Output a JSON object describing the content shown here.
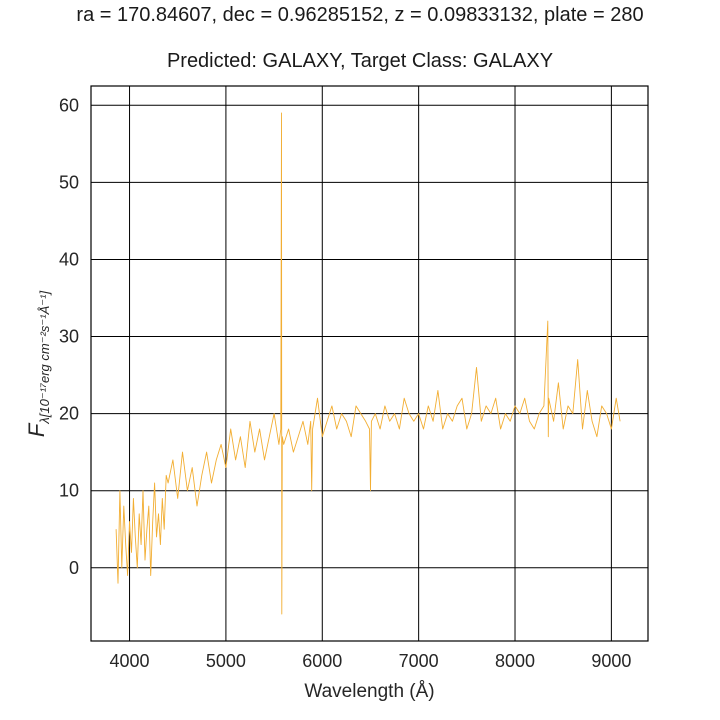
{
  "chart_data": {
    "type": "line",
    "suptitle": "ra = 170.84607, dec = 0.96285152, z = 0.09833132, plate = 280",
    "title": "Predicted: GALAXY, Target Class: GALAXY",
    "xlabel": "Wavelength (Å)",
    "ylabel_main": "F",
    "ylabel_sub": "λ[10⁻¹⁷erg cm⁻²s⁻¹Å⁻¹]",
    "xlim": [
      3600,
      9380
    ],
    "ylim": [
      -9.5,
      62.5
    ],
    "xticks": [
      4000,
      5000,
      6000,
      7000,
      8000,
      9000
    ],
    "yticks": [
      0,
      10,
      20,
      30,
      40,
      50,
      60
    ],
    "grid": true,
    "line_color": "#f2ae33",
    "series": [
      {
        "x": [
          3860,
          3880,
          3900,
          3920,
          3940,
          3960,
          3980,
          4000,
          4020,
          4040,
          4060,
          4080,
          4100,
          4120,
          4140,
          4160,
          4180,
          4200,
          4220,
          4240,
          4260,
          4280,
          4300,
          4320,
          4340,
          4360,
          4380,
          4400,
          4450,
          4500,
          4550,
          4600,
          4650,
          4700,
          4750,
          4800,
          4850,
          4900,
          4950,
          5000,
          5050,
          5100,
          5150,
          5200,
          5250,
          5300,
          5350,
          5400,
          5450,
          5500,
          5550,
          5570,
          5577,
          5580,
          5585,
          5600,
          5650,
          5700,
          5750,
          5800,
          5850,
          5880,
          5890,
          5900,
          5950,
          6000,
          6050,
          6100,
          6150,
          6200,
          6250,
          6300,
          6350,
          6400,
          6450,
          6490,
          6500,
          6510,
          6550,
          6600,
          6650,
          6700,
          6750,
          6800,
          6850,
          6900,
          6950,
          7000,
          7050,
          7100,
          7150,
          7200,
          7250,
          7300,
          7350,
          7400,
          7450,
          7500,
          7550,
          7600,
          7650,
          7700,
          7750,
          7800,
          7850,
          7900,
          7950,
          8000,
          8050,
          8100,
          8150,
          8200,
          8250,
          8300,
          8340,
          8345,
          8350,
          8400,
          8450,
          8500,
          8550,
          8600,
          8650,
          8700,
          8750,
          8800,
          8850,
          8900,
          8950,
          9000,
          9050,
          9090
        ],
        "y": [
          5,
          -2,
          10,
          0,
          8,
          3,
          -1,
          6,
          2,
          9,
          4,
          0,
          7,
          3,
          10,
          1,
          5,
          8,
          -1,
          6,
          11,
          4,
          7,
          3,
          9,
          5,
          12,
          11,
          14,
          9,
          15,
          10,
          13,
          8,
          12,
          15,
          11,
          14,
          16,
          13,
          18,
          14,
          17,
          13,
          19,
          15,
          18,
          14,
          17,
          20,
          16,
          18,
          59,
          -6,
          17,
          16,
          18,
          15,
          17,
          19,
          16,
          19,
          10,
          18,
          22,
          17,
          19,
          21,
          18,
          20,
          19,
          17,
          21,
          20,
          19,
          18,
          10,
          19,
          20,
          18,
          21,
          19,
          20,
          18,
          22,
          20,
          19,
          20,
          18,
          21,
          19,
          23,
          18,
          20,
          19,
          21,
          22,
          18,
          20,
          26,
          19,
          21,
          20,
          22,
          18,
          20,
          19,
          21,
          20,
          22,
          19,
          18,
          20,
          21,
          32,
          17,
          22,
          19,
          24,
          18,
          21,
          20,
          27,
          18,
          23,
          19,
          17,
          21,
          20,
          18,
          22,
          19
        ]
      }
    ]
  }
}
